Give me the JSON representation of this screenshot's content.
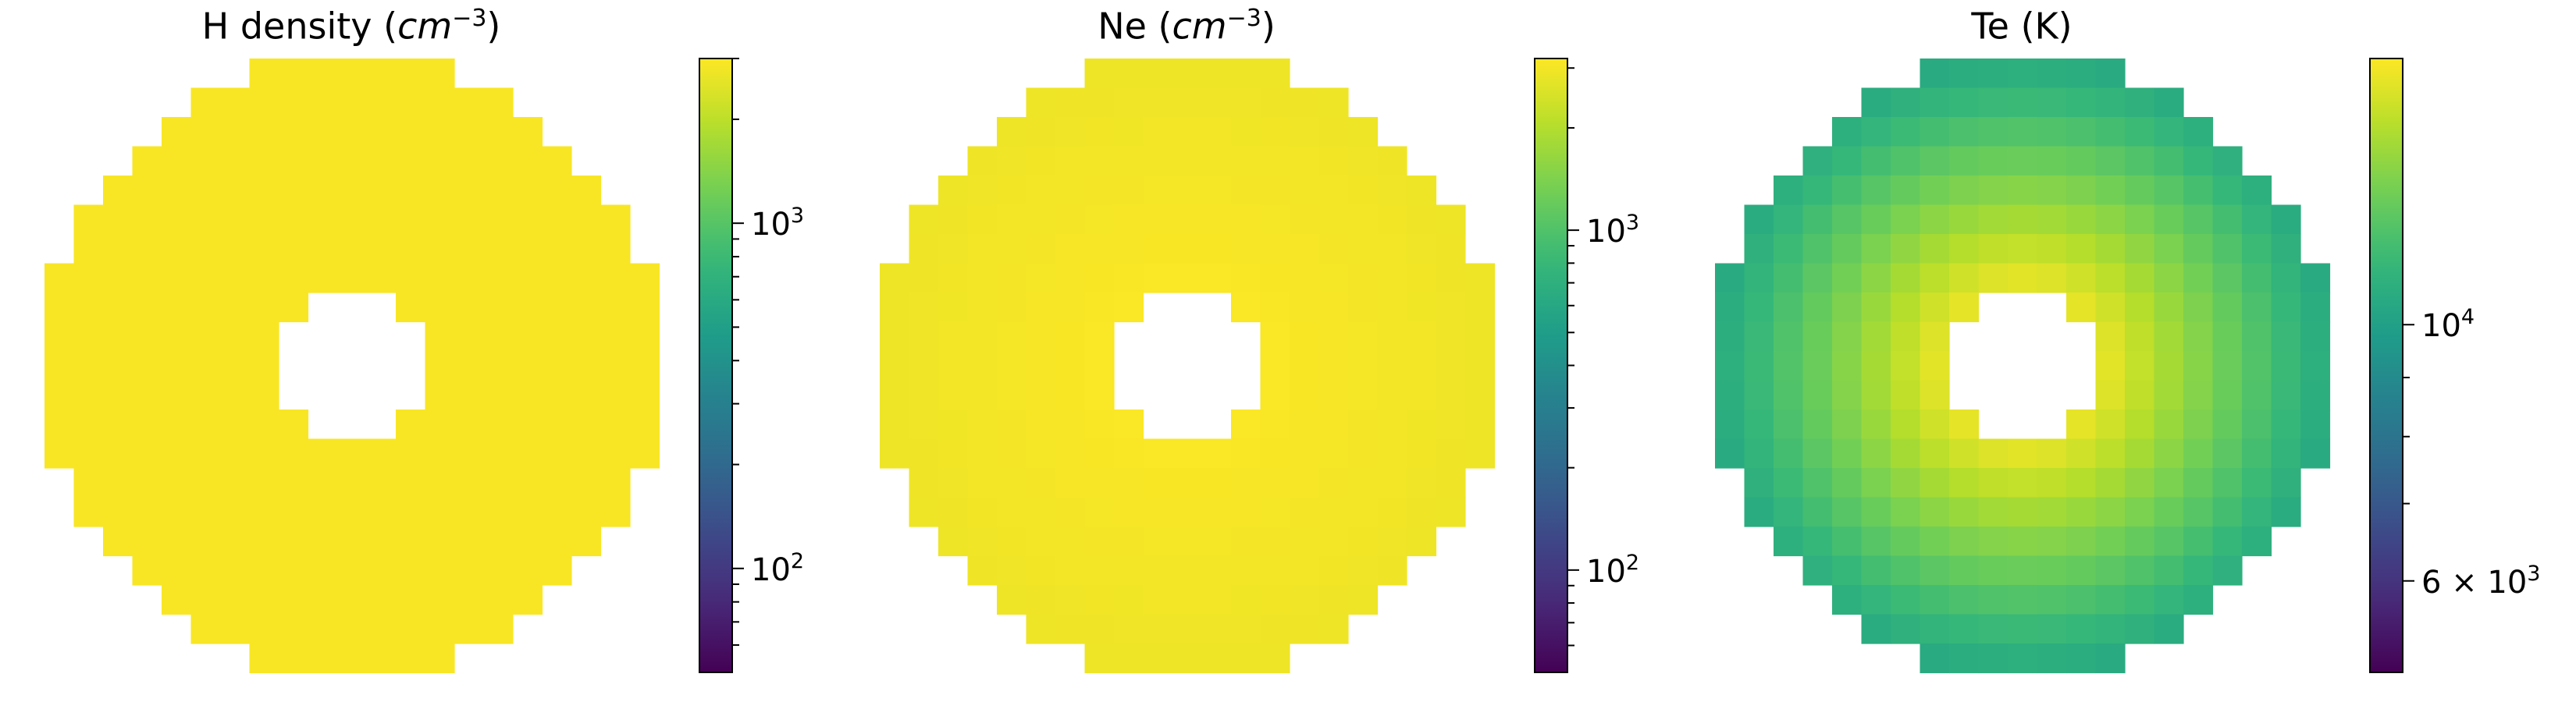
{
  "colormap": "viridis",
  "viridis_stops": [
    "#440154",
    "#482878",
    "#3e4989",
    "#31688e",
    "#26828e",
    "#1f9e89",
    "#35b779",
    "#6ece58",
    "#b5de2b",
    "#fde725"
  ],
  "chart_data": [
    {
      "type": "heatmap",
      "title_prefix": "H density (",
      "title_unit": "cm",
      "title_exp": "−3",
      "title_suffix": ")",
      "grid_size": 21,
      "outer_radius": 10.5,
      "inner_radius": 2.6,
      "scale": "log",
      "vmin": 50,
      "vmax": 3000,
      "field": "uniform",
      "center_value": 2900,
      "edge_value": 2900,
      "colorbar_ticks": [
        {
          "base": "10",
          "exp": "2",
          "value": 100
        },
        {
          "base": "10",
          "exp": "3",
          "value": 1000
        }
      ],
      "colorbar_minor": [
        60,
        70,
        80,
        90,
        200,
        300,
        400,
        500,
        600,
        700,
        800,
        900,
        2000,
        3000
      ]
    },
    {
      "type": "heatmap",
      "title_prefix": "Ne (",
      "title_unit": "cm",
      "title_exp": "−3",
      "title_suffix": ")",
      "grid_size": 21,
      "outer_radius": 10.5,
      "inner_radius": 2.6,
      "scale": "log",
      "vmin": 50,
      "vmax": 3200,
      "field": "radial",
      "center_value": 3150,
      "edge_value": 2900,
      "colorbar_ticks": [
        {
          "base": "10",
          "exp": "2",
          "value": 100
        },
        {
          "base": "10",
          "exp": "3",
          "value": 1000
        }
      ],
      "colorbar_minor": [
        60,
        70,
        80,
        90,
        200,
        300,
        400,
        500,
        600,
        700,
        800,
        900,
        2000,
        3000
      ]
    },
    {
      "type": "heatmap",
      "title_prefix": "Te (K)",
      "title_unit": "",
      "title_exp": "",
      "title_suffix": "",
      "grid_size": 21,
      "outer_radius": 10.5,
      "inner_radius": 2.6,
      "scale": "log",
      "vmin": 5000,
      "vmax": 17000,
      "field": "radial",
      "center_value": 16500,
      "edge_value": 10500,
      "colorbar_ticks": [
        {
          "base": "6 × 10",
          "exp": "3",
          "value": 6000
        },
        {
          "base": "10",
          "exp": "4",
          "value": 10000
        }
      ],
      "colorbar_minor": [
        7000,
        8000,
        9000
      ]
    }
  ]
}
